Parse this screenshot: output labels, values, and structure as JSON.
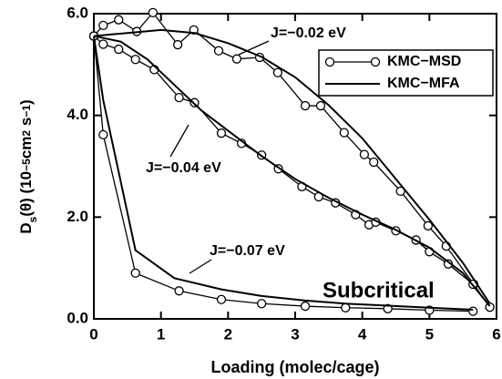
{
  "chart_data": {
    "type": "line",
    "xlabel": "Loading (molec/cage)",
    "ylabel_parts": [
      "D",
      "s",
      "(θ) (10",
      "−5",
      "cm",
      "2",
      " s",
      "−1",
      ")"
    ],
    "xlim": [
      0,
      6
    ],
    "ylim": [
      0,
      6
    ],
    "xticks": [
      0,
      1,
      2,
      3,
      4,
      5,
      6
    ],
    "yticks": [
      {
        "value": 0,
        "label": "0.0"
      },
      {
        "value": 2,
        "label": "2.0"
      },
      {
        "value": 4,
        "label": "4.0"
      },
      {
        "value": 6,
        "label": "6.0"
      }
    ],
    "series": [
      {
        "name": "KMC−MSD",
        "color": "#000000",
        "marker": "circle",
        "curves": [
          {
            "x": [
              0,
              0.14,
              0.37,
              0.64,
              0.88,
              1.25,
              1.49,
              1.86,
              2.13,
              2.47,
              2.74,
              3.15,
              3.38,
              3.73,
              4.03,
              4.17,
              4.57,
              4.98,
              5.25,
              5.66,
              5.9
            ],
            "values": [
              5.56,
              5.77,
              5.88,
              5.65,
              6.02,
              5.39,
              5.68,
              5.27,
              5.11,
              5.14,
              4.84,
              4.19,
              4.19,
              3.66,
              3.23,
              3.08,
              2.51,
              1.83,
              1.43,
              0.68,
              0.23
            ]
          },
          {
            "x": [
              0,
              0.14,
              0.37,
              0.62,
              0.9,
              1.27,
              1.5,
              1.9,
              2.2,
              2.5,
              2.75,
              3.1,
              3.35,
              3.6,
              3.9,
              4.1,
              4.2,
              4.5,
              4.8,
              5.0,
              5.28,
              5.65,
              5.9
            ],
            "values": [
              5.56,
              5.4,
              5.3,
              5.1,
              4.9,
              4.35,
              4.25,
              3.65,
              3.45,
              3.22,
              2.95,
              2.6,
              2.4,
              2.28,
              2.05,
              1.85,
              1.9,
              1.73,
              1.55,
              1.32,
              1.08,
              0.68,
              0.23
            ]
          },
          {
            "x": [
              0,
              0.14,
              0.62,
              1.27,
              1.9,
              2.5,
              3.15,
              3.75,
              4.38,
              5.0,
              5.65
            ],
            "values": [
              5.56,
              3.62,
              0.9,
              0.55,
              0.38,
              0.3,
              0.25,
              0.22,
              0.2,
              0.17,
              0.15
            ]
          }
        ]
      },
      {
        "name": "KMC−MFA",
        "color": "#000000",
        "marker": "none",
        "curves": [
          {
            "x": [
              0,
              0.5,
              1,
              1.5,
              2,
              2.5,
              3,
              3.5,
              4,
              4.5,
              5,
              5.5,
              5.9
            ],
            "values": [
              5.56,
              5.62,
              5.68,
              5.62,
              5.42,
              5.15,
              4.75,
              4.2,
              3.55,
              2.75,
              1.95,
              1.1,
              0.3
            ]
          },
          {
            "x": [
              0,
              0.4,
              0.8,
              1.2,
              1.6,
              2,
              2.5,
              3,
              3.5,
              4,
              4.5,
              5,
              5.5,
              5.9
            ],
            "values": [
              5.56,
              5.45,
              5.1,
              4.6,
              4.1,
              3.7,
              3.2,
              2.75,
              2.38,
              2.05,
              1.75,
              1.4,
              0.9,
              0.25
            ]
          },
          {
            "x": [
              0,
              0.14,
              0.62,
              1.2,
              1.9,
              2.5,
              3.15,
              3.75,
              4.38,
              5.0,
              5.65
            ],
            "values": [
              5.56,
              4.3,
              1.35,
              0.8,
              0.58,
              0.45,
              0.36,
              0.3,
              0.26,
              0.22,
              0.18
            ]
          }
        ]
      }
    ],
    "annotations": [
      "J=−0.02 eV",
      "J=−0.04 eV",
      "J=−0.07 eV",
      "Subcritical"
    ]
  }
}
